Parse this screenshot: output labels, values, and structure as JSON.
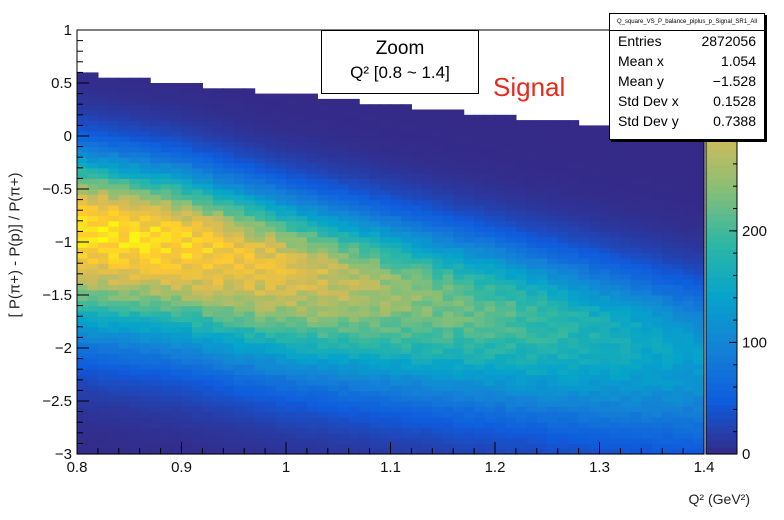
{
  "chart_data": {
    "type": "heatmap",
    "title": "",
    "xlabel": "Q² (GeV²)",
    "ylabel": "[ P(π+) - P(p)] / P(π+)",
    "xlim": [
      0.8,
      1.4
    ],
    "ylim": [
      -3,
      1
    ],
    "zlim": [
      0,
      380
    ],
    "x_ticks": [
      "0.8",
      "0.9",
      "1",
      "1.1",
      "1.2",
      "1.3",
      "1.4"
    ],
    "y_ticks": [
      "−3",
      "−2.5",
      "−2",
      "−1.5",
      "−1",
      "−0.5",
      "0",
      "0.5",
      "1"
    ],
    "z_ticks": [
      "0",
      "100",
      "200",
      "300"
    ],
    "ridge": {
      "x": [
        0.8,
        0.9,
        1.0,
        1.1,
        1.2,
        1.3,
        1.4
      ],
      "y_peak": [
        -0.85,
        -1.0,
        -1.25,
        -1.45,
        -1.65,
        -1.85,
        -2.05
      ],
      "z_peak": [
        360,
        340,
        300,
        250,
        210,
        170,
        130
      ]
    },
    "upper_edge": {
      "x": [
        0.8,
        0.9,
        1.0,
        1.1,
        1.2,
        1.3,
        1.4
      ],
      "y": [
        0.6,
        0.5,
        0.4,
        0.3,
        0.2,
        0.1,
        0.0
      ]
    },
    "palette": [
      "#352a87",
      "#0f5cdd",
      "#1481d6",
      "#06a4ca",
      "#2eb7a4",
      "#87bf77",
      "#d1bb59",
      "#fec832",
      "#f9fb0e"
    ]
  },
  "stats_box": {
    "name": "Q_square_VS_P_balance_piplus_p_Signal_SR1_All",
    "rows": [
      {
        "label": "Entries",
        "value": "2872056"
      },
      {
        "label": "Mean x",
        "value": "1.054"
      },
      {
        "label": "Mean y",
        "value": "−1.528"
      },
      {
        "label": "Std Dev x",
        "value": "0.1528"
      },
      {
        "label": "Std Dev y",
        "value": "0.7388"
      }
    ]
  },
  "zoom_box": {
    "line1": "Zoom",
    "line2": "Q² [0.8 ~ 1.4]"
  },
  "signal_label": "Signal"
}
